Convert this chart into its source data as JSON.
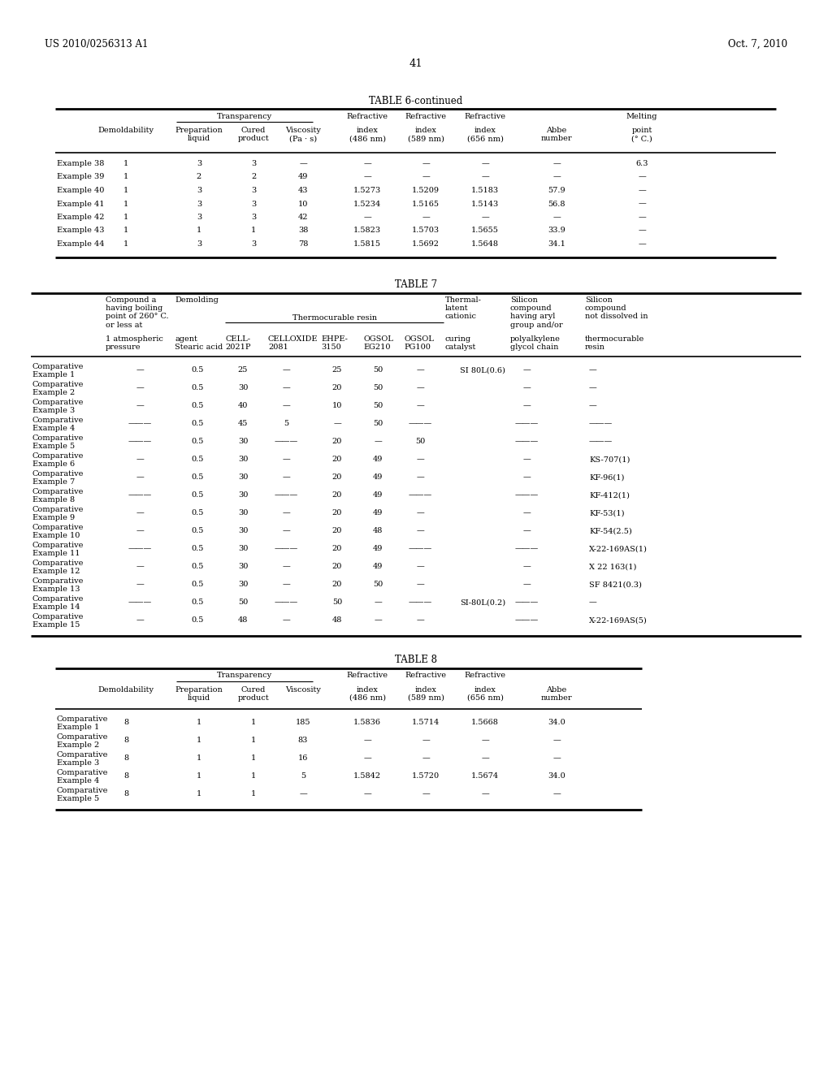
{
  "page_header_left": "US 2010/0256313 A1",
  "page_header_right": "Oct. 7, 2010",
  "page_number": "41",
  "table6_title": "TABLE 6-continued",
  "table6_rows": [
    [
      "Example 38",
      "1",
      "3",
      "3",
      "—",
      "—",
      "—",
      "—",
      "—",
      "6.3"
    ],
    [
      "Example 39",
      "1",
      "2",
      "2",
      "49",
      "—",
      "—",
      "—",
      "—",
      "—"
    ],
    [
      "Example 40",
      "1",
      "3",
      "3",
      "43",
      "1.5273",
      "1.5209",
      "1.5183",
      "57.9",
      "—"
    ],
    [
      "Example 41",
      "1",
      "3",
      "3",
      "10",
      "1.5234",
      "1.5165",
      "1.5143",
      "56.8",
      "—"
    ],
    [
      "Example 42",
      "1",
      "3",
      "3",
      "42",
      "—",
      "—",
      "—",
      "—",
      "—"
    ],
    [
      "Example 43",
      "1",
      "1",
      "1",
      "38",
      "1.5823",
      "1.5703",
      "1.5655",
      "33.9",
      "—"
    ],
    [
      "Example 44",
      "1",
      "3",
      "3",
      "78",
      "1.5815",
      "1.5692",
      "1.5648",
      "34.1",
      "—"
    ]
  ],
  "table7_title": "TABLE 7",
  "table7_rows": [
    [
      "Comparative\nExample 1",
      "—",
      "0.5",
      "25",
      "—",
      "25",
      "50",
      "—",
      "SI 80L(0.6)",
      "—",
      "—"
    ],
    [
      "Comparative\nExample 2",
      "—",
      "0.5",
      "30",
      "—",
      "20",
      "50",
      "—",
      "",
      "—",
      "—"
    ],
    [
      "Comparative\nExample 3",
      "—",
      "0.5",
      "40",
      "—",
      "10",
      "50",
      "—",
      "",
      "—",
      "—"
    ],
    [
      "Comparative\nExample 4",
      "———",
      "0.5",
      "45",
      "5",
      "—",
      "50",
      "———",
      "",
      "———",
      "———"
    ],
    [
      "Comparative\nExample 5",
      "———",
      "0.5",
      "30",
      "———",
      "20",
      "—",
      "50",
      "",
      "———",
      "———"
    ],
    [
      "Comparative\nExample 6",
      "—",
      "0.5",
      "30",
      "—",
      "20",
      "49",
      "—",
      "",
      "—",
      "KS-707(1)"
    ],
    [
      "Comparative\nExample 7",
      "—",
      "0.5",
      "30",
      "—",
      "20",
      "49",
      "—",
      "",
      "—",
      "KF-96(1)"
    ],
    [
      "Comparative\nExample 8",
      "———",
      "0.5",
      "30",
      "———",
      "20",
      "49",
      "———",
      "",
      "———",
      "KF-412(1)"
    ],
    [
      "Comparative\nExample 9",
      "—",
      "0.5",
      "30",
      "—",
      "20",
      "49",
      "—",
      "",
      "—",
      "KF-53(1)"
    ],
    [
      "Comparative\nExample 10",
      "—",
      "0.5",
      "30",
      "—",
      "20",
      "48",
      "—",
      "",
      "—",
      "KF-54(2.5)"
    ],
    [
      "Comparative\nExample 11",
      "———",
      "0.5",
      "30",
      "———",
      "20",
      "49",
      "———",
      "",
      "———",
      "X-22-169AS(1)"
    ],
    [
      "Comparative\nExample 12",
      "—",
      "0.5",
      "30",
      "—",
      "20",
      "49",
      "—",
      "",
      "—",
      "X 22 163(1)"
    ],
    [
      "Comparative\nExample 13",
      "—",
      "0.5",
      "30",
      "—",
      "20",
      "50",
      "—",
      "",
      "—",
      "SF 8421(0.3)"
    ],
    [
      "Comparative\nExample 14",
      "———",
      "0.5",
      "50",
      "———",
      "50",
      "—",
      "———",
      "SI-80L(0.2)",
      "———",
      "—"
    ],
    [
      "Comparative\nExample 15",
      "—",
      "0.5",
      "48",
      "—",
      "48",
      "—",
      "—",
      "",
      "———",
      "X-22-169AS(5)"
    ]
  ],
  "table8_title": "TABLE 8",
  "table8_rows": [
    [
      "Comparative\nExample 1",
      "8",
      "1",
      "1",
      "185",
      "1.5836",
      "1.5714",
      "1.5668",
      "34.0"
    ],
    [
      "Comparative\nExample 2",
      "8",
      "1",
      "1",
      "83",
      "—",
      "—",
      "—",
      "—"
    ],
    [
      "Comparative\nExample 3",
      "8",
      "1",
      "1",
      "16",
      "—",
      "—",
      "—",
      "—"
    ],
    [
      "Comparative\nExample 4",
      "8",
      "1",
      "1",
      "5",
      "1.5842",
      "1.5720",
      "1.5674",
      "34.0"
    ],
    [
      "Comparative\nExample 5",
      "8",
      "1",
      "1",
      "—",
      "—",
      "—",
      "—",
      "—"
    ]
  ]
}
